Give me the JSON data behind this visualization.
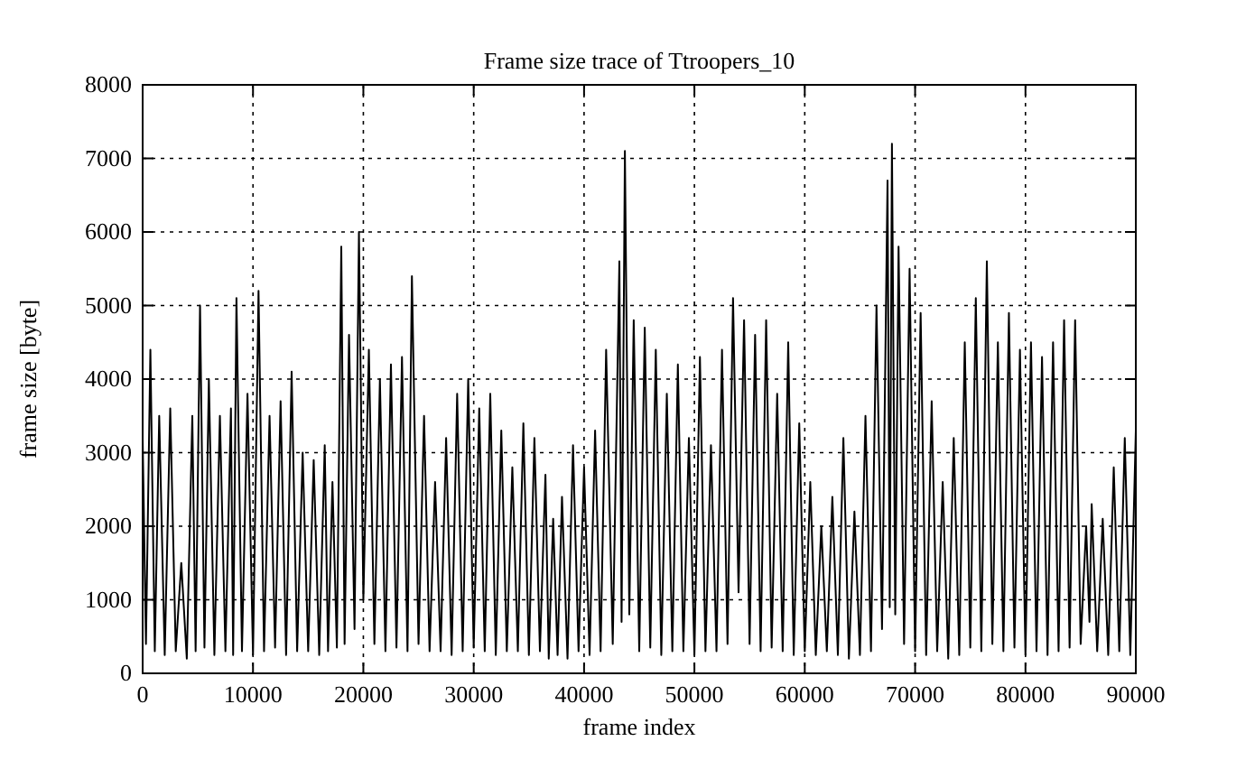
{
  "chart_data": {
    "type": "line",
    "title": "Frame size trace of Ttroopers_10",
    "xlabel": "frame index",
    "ylabel": "frame size [byte]",
    "xlim": [
      0,
      90000
    ],
    "xticks": [
      0,
      10000,
      20000,
      30000,
      40000,
      50000,
      60000,
      70000,
      80000,
      90000
    ],
    "ylim": [
      0,
      8000
    ],
    "yticks": [
      0,
      1000,
      2000,
      3000,
      4000,
      5000,
      6000,
      7000,
      8000
    ],
    "grid": true,
    "line_style": "solid",
    "x": [
      0,
      300,
      700,
      1100,
      1500,
      2000,
      2500,
      3000,
      3500,
      4000,
      4500,
      4800,
      5200,
      5600,
      6000,
      6500,
      7000,
      7500,
      8000,
      8200,
      8500,
      9000,
      9500,
      10000,
      10500,
      11000,
      11500,
      12000,
      12500,
      13000,
      13500,
      14000,
      14500,
      15000,
      15500,
      16000,
      16500,
      16800,
      17200,
      17600,
      18000,
      18300,
      18700,
      19200,
      19600,
      20000,
      20500,
      21000,
      21500,
      22000,
      22500,
      23000,
      23500,
      24000,
      24400,
      25000,
      25500,
      26000,
      26500,
      27000,
      27500,
      28000,
      28500,
      29000,
      29500,
      30000,
      30500,
      31000,
      31500,
      32000,
      32500,
      33000,
      33500,
      34000,
      34500,
      35000,
      35500,
      36000,
      36500,
      36800,
      37200,
      37600,
      38000,
      38500,
      39000,
      39500,
      40000,
      40500,
      41000,
      41500,
      42000,
      42600,
      43200,
      43400,
      43700,
      44100,
      44500,
      45000,
      45500,
      46000,
      46500,
      47000,
      47500,
      48000,
      48500,
      49000,
      49500,
      50000,
      50500,
      51000,
      51500,
      52000,
      52500,
      53000,
      53500,
      54000,
      54500,
      55000,
      55500,
      56000,
      56500,
      57000,
      57500,
      58000,
      58500,
      59000,
      59500,
      60000,
      60500,
      61000,
      61500,
      62000,
      62500,
      63000,
      63500,
      64000,
      64500,
      65000,
      65500,
      66000,
      66500,
      67000,
      67500,
      67700,
      67900,
      68200,
      68500,
      69000,
      69500,
      70000,
      70500,
      71000,
      71500,
      72000,
      72500,
      73000,
      73500,
      74000,
      74500,
      75000,
      75500,
      76000,
      76500,
      77000,
      77500,
      78000,
      78500,
      79000,
      79500,
      80000,
      80500,
      81000,
      81500,
      82000,
      82500,
      83000,
      83500,
      84000,
      84500,
      85000,
      85500,
      85800,
      86000,
      86500,
      87000,
      87500,
      88000,
      88500,
      89000,
      89500,
      90000
    ],
    "series": [
      {
        "color": "#000000",
        "values": [
          3200,
          400,
          4400,
          300,
          3500,
          250,
          3600,
          300,
          1500,
          200,
          3500,
          300,
          5000,
          350,
          4000,
          250,
          3500,
          300,
          3600,
          250,
          5100,
          300,
          3800,
          250,
          5200,
          300,
          3500,
          350,
          3700,
          250,
          4100,
          300,
          3000,
          300,
          2900,
          250,
          3100,
          300,
          2600,
          350,
          5800,
          400,
          4600,
          600,
          6000,
          1000,
          4400,
          400,
          4000,
          300,
          4200,
          350,
          4300,
          300,
          5400,
          400,
          3500,
          300,
          2600,
          300,
          3200,
          250,
          3800,
          300,
          4000,
          350,
          3600,
          300,
          3800,
          250,
          3300,
          300,
          2800,
          300,
          3400,
          250,
          3200,
          300,
          2700,
          200,
          2100,
          250,
          2400,
          200,
          3100,
          300,
          2800,
          250,
          3300,
          300,
          4400,
          400,
          5600,
          700,
          7100,
          800,
          4800,
          300,
          4700,
          350,
          4400,
          250,
          3800,
          300,
          4200,
          300,
          3200,
          250,
          4300,
          300,
          3100,
          300,
          4400,
          400,
          5100,
          1100,
          4800,
          400,
          4600,
          300,
          4800,
          350,
          3800,
          300,
          4500,
          250,
          3400,
          300,
          2600,
          250,
          2000,
          300,
          2400,
          250,
          3200,
          200,
          2200,
          250,
          3500,
          300,
          5000,
          600,
          6700,
          900,
          7200,
          800,
          5800,
          400,
          5500,
          300,
          4900,
          250,
          3700,
          300,
          2600,
          200,
          3200,
          250,
          4500,
          350,
          5100,
          300,
          5600,
          400,
          4500,
          300,
          4900,
          350,
          4400,
          250,
          4500,
          300,
          4300,
          250,
          4500,
          300,
          4800,
          350,
          4800,
          400,
          2000,
          700,
          2300,
          300,
          2100,
          250,
          2800,
          300,
          3200,
          250,
          3300
        ]
      }
    ]
  }
}
